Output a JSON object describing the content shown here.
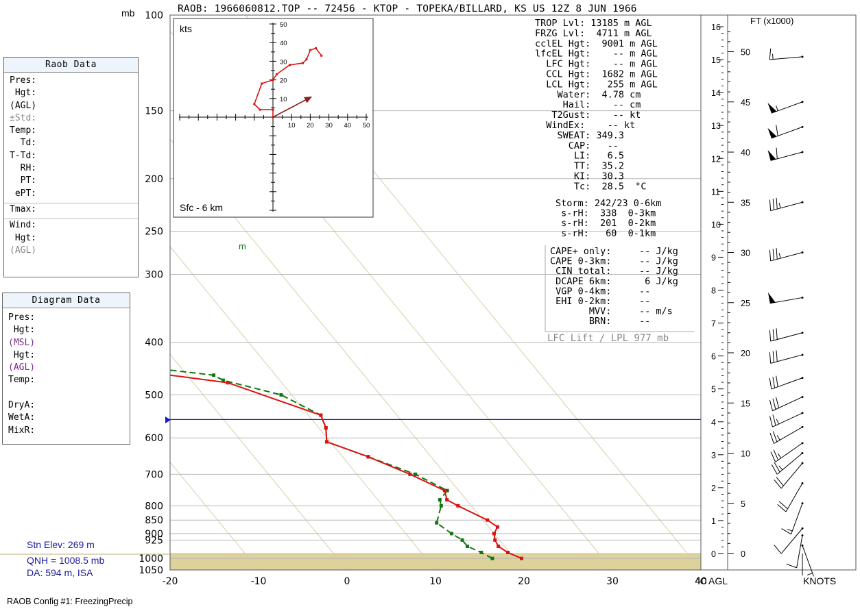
{
  "header": {
    "title": "RAOB:  1966060812.TOP  --  72456 - KTOP - TOPEKA/BILLARD, KS US 12Z 8 JUN 1966",
    "pressure_unit": "mb"
  },
  "raob_panel": {
    "title": "Raob Data",
    "rows": [
      "Pres:",
      " Hgt:",
      "(AGL)",
      "±Std:",
      "Temp:",
      "  Td:",
      "T-Td:",
      "  RH:",
      "  PT:",
      " ePT:",
      "Tmax:",
      "Wind:",
      " Hgt:",
      "(AGL)"
    ]
  },
  "diagram_panel": {
    "title": "Diagram Data",
    "rows": [
      "Pres:",
      " Hgt:",
      "(MSL)",
      " Hgt:",
      "(AGL)",
      "Temp:",
      "",
      "DryA:",
      "WetA:",
      "MixR:"
    ]
  },
  "station": {
    "elev": "Stn Elev: 269 m",
    "qnh": "QNH = 1008.5 mb",
    "da": "DA: 594 m, ISA"
  },
  "config_label": "RAOB Config #1: FreezingPrecip",
  "indices": [
    "TROP Lvl: 13185 m AGL",
    "FRZG Lvl:  4711 m AGL",
    "cclEL Hgt:  9001 m AGL",
    "lfcEL Hgt:    -- m AGL",
    "  LFC Hgt:    -- m AGL",
    "  CCL Hgt:  1682 m AGL",
    "  LCL Hgt:   255 m AGL",
    "    Water:  4.78 cm",
    "     Hail:    -- cm",
    "   T2Gust:    -- kt",
    "  WindEx:    -- kt",
    "    SWEAT: 349.3",
    "      CAP:   --",
    "       LI:   6.5",
    "       TT:  35.2",
    "       KI:  30.3",
    "       Tc:  28.5  °C"
  ],
  "storm": [
    "Storm: 242/23 0-6km",
    " s-rH:  338  0-3km",
    " s-rH:  201  0-2km",
    " s-rH:   60  0-1km"
  ],
  "cape_box": [
    "CAPE+ only:     -- J/kg",
    "CAPE 0-3km:     -- J/kg",
    " CIN total:     -- J/kg",
    " DCAPE 6km:      6 J/kg",
    " VGP 0-4km:     --",
    " EHI 0-2km:     --",
    "       MVV:     -- m/s",
    "       BRN:     --"
  ],
  "lfc_lift": "LFC Lift / LPL 977 mb",
  "hodograph": {
    "unit": "kts",
    "layer": "Sfc - 6 km",
    "ticks": [
      "10",
      "20",
      "30",
      "40",
      "50"
    ]
  },
  "height_axis": {
    "title": "FT (x1000)",
    "km_labels": [
      "0",
      "1",
      "2",
      "3",
      "4",
      "5",
      "6",
      "7",
      "8",
      "9",
      "10",
      "11",
      "12",
      "13",
      "14",
      "15",
      "16"
    ],
    "ft_labels": [
      "0",
      "5",
      "10",
      "15",
      "20",
      "25",
      "30",
      "35",
      "40",
      "45",
      "50"
    ]
  },
  "bottom_labels": {
    "deg_c": "°C",
    "agl": "AGL",
    "knots": "KNOTS"
  },
  "marker_m": "m",
  "colors": {
    "temperature": "#dd1111",
    "dewpoint": "#117711",
    "isobar": "#b8b8b8",
    "skewed_isotherm": "#d8cda8",
    "freezing_level": "#1a1acc",
    "ground_fill": "#ddd29a",
    "hodograph": "#dd1111",
    "storm_motion": "#882222"
  },
  "chart_data": [
    {
      "type": "line",
      "chart": "skew-t log-p",
      "y_axis": {
        "label": "mb",
        "scale": "log",
        "range": [
          1050,
          100
        ],
        "ticks": [
          "100",
          "150",
          "200",
          "250",
          "300",
          "400",
          "500",
          "600",
          "700",
          "800",
          "850",
          "900",
          "925",
          "1000",
          "1050"
        ]
      },
      "x_axis": {
        "label": "°C",
        "range": [
          -20,
          40
        ],
        "ticks": [
          "-20",
          "-10",
          "0",
          "10",
          "20",
          "30",
          "40"
        ]
      },
      "series": [
        {
          "name": "Temperature",
          "points": [
            {
              "p": 1000,
              "t": 20.8
            },
            {
              "p": 975,
              "t": 19.8
            },
            {
              "p": 950,
              "t": 19.3
            },
            {
              "p": 925,
              "t": 19.5
            },
            {
              "p": 900,
              "t": 20.0
            },
            {
              "p": 875,
              "t": 21.0
            },
            {
              "p": 850,
              "t": 20.5
            },
            {
              "p": 800,
              "t": 18.5
            },
            {
              "p": 780,
              "t": 17.8
            },
            {
              "p": 750,
              "t": 18.4
            },
            {
              "p": 700,
              "t": 16.0
            },
            {
              "p": 650,
              "t": 12.9
            },
            {
              "p": 610,
              "t": 9.6
            },
            {
              "p": 575,
              "t": 10.8
            },
            {
              "p": 545,
              "t": 11.4
            },
            {
              "p": 475,
              "t": 3.9
            },
            {
              "p": 450,
              "t": -5.9
            },
            {
              "p": 420,
              "t": -8.7
            },
            {
              "p": 340,
              "t": -18.1
            },
            {
              "p": 300,
              "t": -25.2
            },
            {
              "p": 250,
              "t": -37.1
            },
            {
              "p": 230,
              "t": -42.4
            }
          ]
        },
        {
          "name": "Dewpoint",
          "points": [
            {
              "p": 1000,
              "t": 17.5
            },
            {
              "p": 975,
              "t": 16.8
            },
            {
              "p": 950,
              "t": 15.8
            },
            {
              "p": 925,
              "t": 15.8
            },
            {
              "p": 900,
              "t": 15.2
            },
            {
              "p": 860,
              "t": 14.5
            },
            {
              "p": 800,
              "t": 16.6
            },
            {
              "p": 780,
              "t": 17.0
            },
            {
              "p": 750,
              "t": 18.7
            },
            {
              "p": 700,
              "t": 16.6
            },
            {
              "p": 650,
              "t": 12.9
            },
            {
              "p": 610,
              "t": 9.6
            },
            {
              "p": 575,
              "t": 10.8
            },
            {
              "p": 545,
              "t": 11.4
            },
            {
              "p": 500,
              "t": 8.8
            },
            {
              "p": 470,
              "t": 3.6
            },
            {
              "p": 460,
              "t": 3.0
            },
            {
              "p": 430,
              "t": -11.0
            },
            {
              "p": 400,
              "t": -14.8
            },
            {
              "p": 350,
              "t": -21.8
            },
            {
              "p": 300,
              "t": -31.5
            }
          ]
        }
      ],
      "freezing_level_mb": 555,
      "surface_pressure_mb": 977
    },
    {
      "type": "line",
      "chart": "hodograph",
      "unit": "kts",
      "x_range": [
        -50,
        50
      ],
      "y_range": [
        -50,
        50
      ],
      "points": [
        [
          0,
          0
        ],
        [
          0,
          4
        ],
        [
          -7,
          4
        ],
        [
          -10,
          7
        ],
        [
          -6,
          18
        ],
        [
          0,
          20
        ],
        [
          2,
          23
        ],
        [
          9,
          28
        ],
        [
          16,
          29
        ],
        [
          18,
          31
        ],
        [
          20,
          36
        ],
        [
          23,
          37
        ],
        [
          26,
          33
        ]
      ],
      "storm_motion": [
        20.5,
        10.8
      ]
    },
    {
      "type": "table",
      "chart": "wind barbs",
      "unit": "KNOTS",
      "columns": [
        "height_kft_agl",
        "direction_deg",
        "speed_kts"
      ],
      "rows": [
        [
          0.8,
          160,
          5
        ],
        [
          1.8,
          190,
          10
        ],
        [
          2.5,
          220,
          8
        ],
        [
          5.0,
          200,
          15
        ],
        [
          7.0,
          210,
          20
        ],
        [
          9.0,
          220,
          20
        ],
        [
          10.0,
          230,
          25
        ],
        [
          11.0,
          235,
          25
        ],
        [
          12.6,
          240,
          25
        ],
        [
          14.0,
          245,
          25
        ],
        [
          15.6,
          245,
          30
        ],
        [
          17.5,
          250,
          30
        ],
        [
          19.8,
          255,
          30
        ],
        [
          22.0,
          255,
          30
        ],
        [
          25.5,
          260,
          50
        ],
        [
          30.0,
          255,
          35
        ],
        [
          35.0,
          255,
          35
        ],
        [
          40.0,
          255,
          60
        ],
        [
          42.5,
          250,
          60
        ],
        [
          45.0,
          250,
          55
        ],
        [
          49.5,
          265,
          15
        ]
      ]
    }
  ]
}
